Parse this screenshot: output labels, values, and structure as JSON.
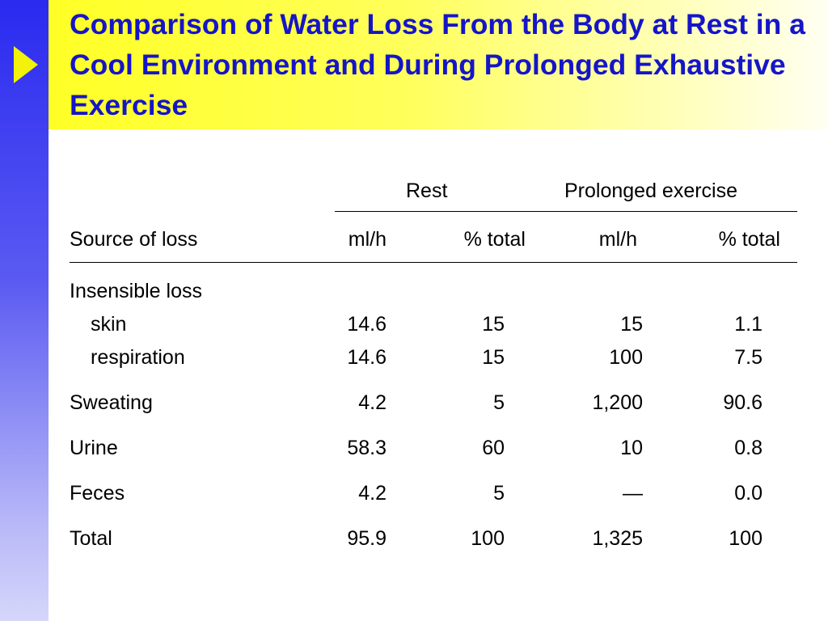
{
  "title": "Comparison of Water Loss From the Body at Rest in a Cool Environment and During Prolonged Exhaustive Exercise",
  "table": {
    "group_headers": {
      "rest": "Rest",
      "exercise": "Prolonged exercise"
    },
    "column_headers": {
      "source": "Source of loss",
      "rest_mlh": "ml/h",
      "rest_pct": "% total",
      "ex_mlh": "ml/h",
      "ex_pct": "% total"
    },
    "rows": [
      {
        "label": "Insensible loss",
        "rest_mlh": "",
        "rest_pct": "",
        "ex_mlh": "",
        "ex_pct": ""
      },
      {
        "label": "skin",
        "rest_mlh": "14.6",
        "rest_pct": "15",
        "ex_mlh": "15",
        "ex_pct": "1.1"
      },
      {
        "label": "respiration",
        "rest_mlh": "14.6",
        "rest_pct": "15",
        "ex_mlh": "100",
        "ex_pct": "7.5"
      },
      {
        "label": "Sweating",
        "rest_mlh": "4.2",
        "rest_pct": "5",
        "ex_mlh": "1,200",
        "ex_pct": "90.6"
      },
      {
        "label": "Urine",
        "rest_mlh": "58.3",
        "rest_pct": "60",
        "ex_mlh": "10",
        "ex_pct": "0.8"
      },
      {
        "label": "Feces",
        "rest_mlh": "4.2",
        "rest_pct": "5",
        "ex_mlh": "—",
        "ex_pct": "0.0"
      },
      {
        "label": "Total",
        "rest_mlh": "95.9",
        "rest_pct": "100",
        "ex_mlh": "1,325",
        "ex_pct": "100"
      }
    ]
  },
  "colors": {
    "title_text": "#1515c8",
    "title_band": "#ffff26",
    "sidebar": "#2a2af0",
    "arrow": "#f2f20a"
  },
  "icons": {
    "bullet": "triangle-arrow-icon"
  }
}
